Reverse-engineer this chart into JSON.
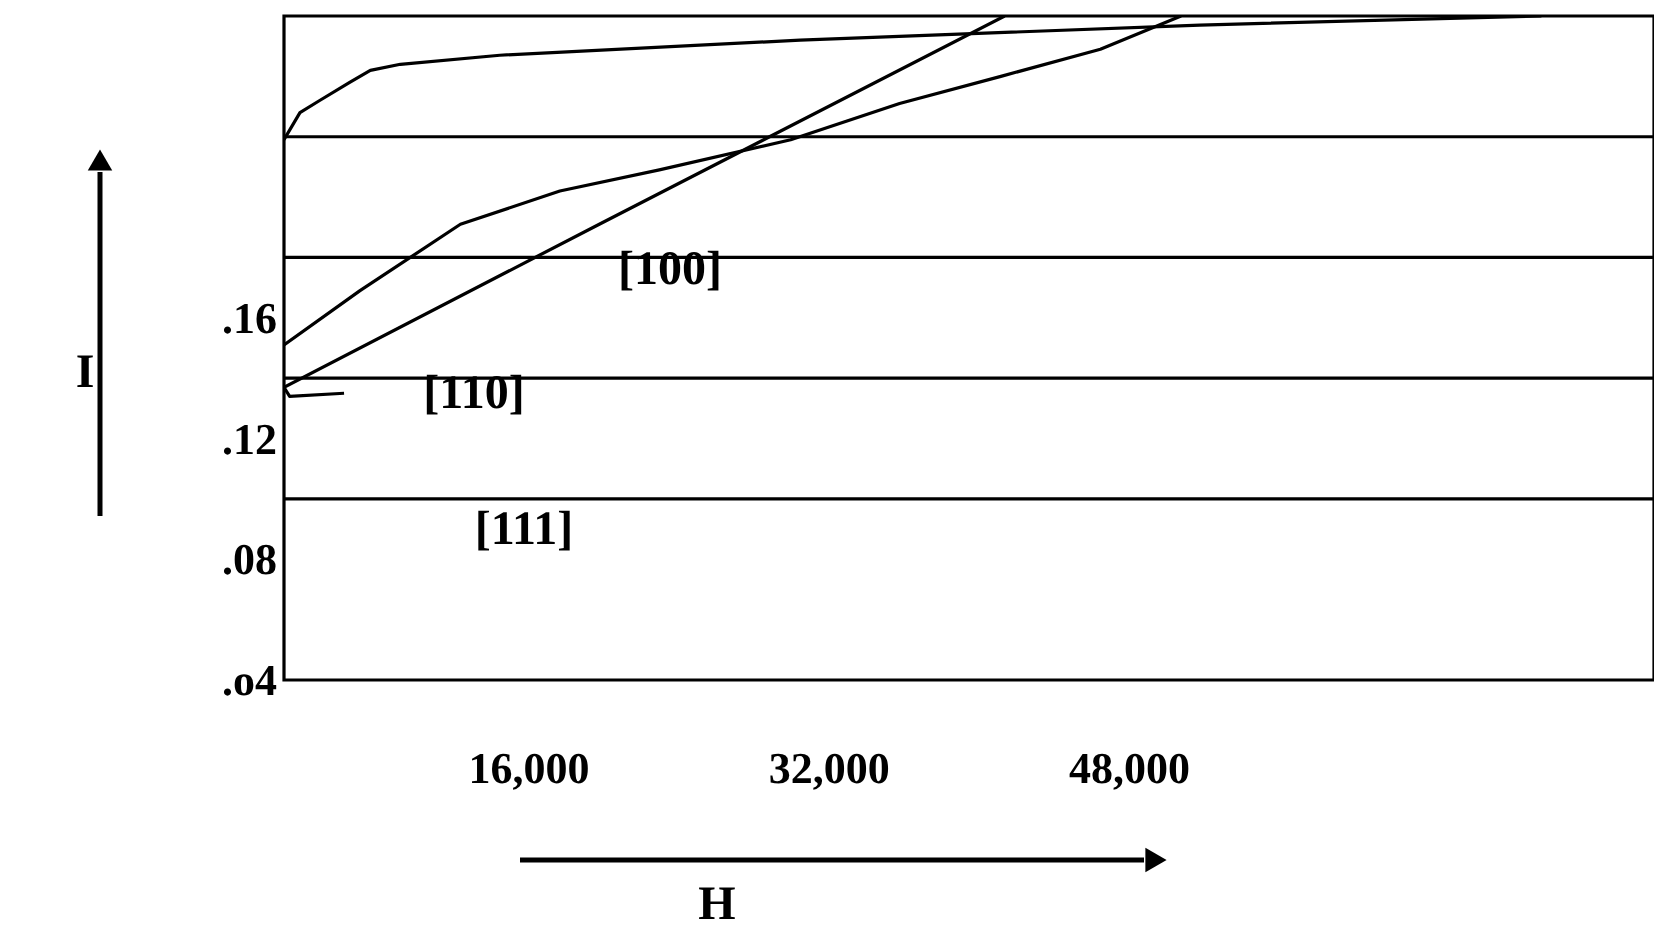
{
  "chart_data": {
    "type": "line",
    "xlabel": "H",
    "ylabel": "I",
    "xlim": [
      3000,
      76000
    ],
    "xticks": [
      {
        "value": 16000,
        "label": "16,000"
      },
      {
        "value": 32000,
        "label": "32,000"
      },
      {
        "value": 48000,
        "label": "48,000"
      }
    ],
    "ylim": [
      0.04,
      0.26
    ],
    "yticks": [
      {
        "value": 0.04,
        "label": ".o4"
      },
      {
        "value": 0.08,
        "label": ".08"
      },
      {
        "value": 0.12,
        "label": ".12"
      },
      {
        "value": 0.16,
        "label": ".16"
      }
    ],
    "grid": false,
    "marker": "none",
    "line_style": "solid",
    "ref_lines": [
      {
        "axis": "y",
        "value": 0.1,
        "color": "#000000"
      },
      {
        "axis": "y",
        "value": 0.14,
        "color": "#000000"
      },
      {
        "axis": "y",
        "value": 0.18,
        "color": "#000000"
      },
      {
        "axis": "y",
        "value": 0.22,
        "color": "#000000"
      }
    ],
    "series": [
      {
        "color": "#000000",
        "x": [
          3000,
          3850,
          4900,
          6500,
          7600,
          9200,
          14500,
          30500,
          51800,
          70000
        ],
        "values": [
          0.219,
          0.228,
          0.232,
          0.238,
          0.242,
          0.244,
          0.247,
          0.252,
          0.257,
          0.26
        ]
      },
      {
        "color": "#000000",
        "x": [
          3000,
          7050,
          12400,
          17700,
          23000,
          30000,
          35800,
          41200,
          46500,
          50800
        ],
        "values": [
          0.151,
          0.169,
          0.191,
          0.202,
          0.209,
          0.219,
          0.231,
          0.24,
          0.249,
          0.26
        ]
      },
      {
        "color": "#000000",
        "x": [
          6200,
          3300,
          3000,
          19800,
          41400
        ],
        "values": [
          0.135,
          0.134,
          0.137,
          0.191,
          0.26
        ]
      }
    ],
    "annotations": [
      "[100]",
      "[110]",
      "[111]"
    ]
  }
}
